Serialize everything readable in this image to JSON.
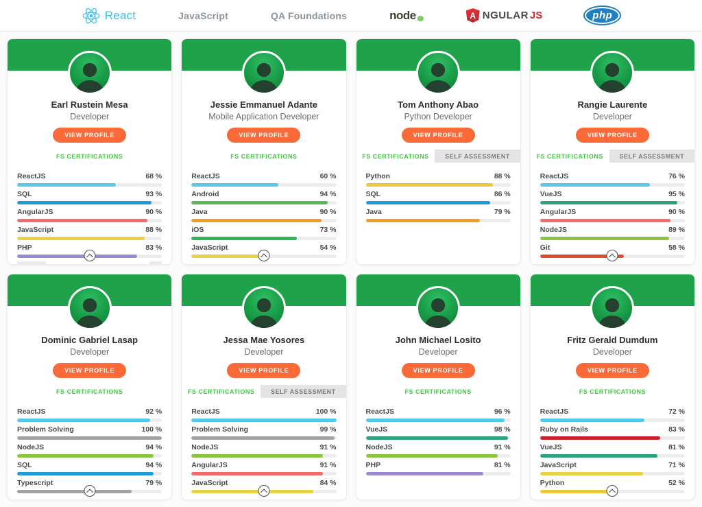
{
  "nav": {
    "react_label": "React",
    "javascript_label": "JavaScript",
    "qa_label": "QA Foundations",
    "node_label": "node",
    "angular_initial": "A",
    "angular_rest": "NGULAR",
    "angular_suffix": "JS",
    "php_label": "php"
  },
  "colors": {
    "header_green": "#1fa24a",
    "button_orange": "#fa6a38",
    "cert_green": "#3ecb3e",
    "react_accent": "#3ac0ee",
    "bar_track": "#ececec"
  },
  "cards": [
    {
      "name": "Earl Rustein Mesa",
      "role": "Developer",
      "button_label": "VIEW PROFILE",
      "cert_tab": "FS CERTIFICATIONS",
      "self_tab": null,
      "faded_extra": true,
      "expand_button": true,
      "skills": [
        {
          "label": "ReactJS",
          "value": 68,
          "color": "#55c8ed"
        },
        {
          "label": "SQL",
          "value": 93,
          "color": "#1f9ad7"
        },
        {
          "label": "AngularJS",
          "value": 90,
          "color": "#f26a6a"
        },
        {
          "label": "JavaScript",
          "value": 88,
          "color": "#e8d348"
        },
        {
          "label": "PHP",
          "value": 83,
          "color": "#9c8ad0"
        }
      ]
    },
    {
      "name": "Jessie Emmanuel Adante",
      "role": "Mobile Application Developer",
      "button_label": "VIEW PROFILE",
      "cert_tab": "FS CERTIFICATIONS",
      "self_tab": null,
      "faded_extra": false,
      "expand_button": true,
      "skills": [
        {
          "label": "ReactJS",
          "value": 60,
          "color": "#55c8ed"
        },
        {
          "label": "Android",
          "value": 94,
          "color": "#5cb85c"
        },
        {
          "label": "Java",
          "value": 90,
          "color": "#f59a23"
        },
        {
          "label": "iOS",
          "value": 73,
          "color": "#2fb457"
        },
        {
          "label": "JavaScript",
          "value": 54,
          "color": "#e8d348"
        }
      ]
    },
    {
      "name": "Tom Anthony Abao",
      "role": "Python Developer",
      "button_label": "VIEW PROFILE",
      "cert_tab": "FS CERTIFICATIONS",
      "self_tab": "SELF ASSESSMENT",
      "faded_extra": false,
      "expand_button": false,
      "skills": [
        {
          "label": "Python",
          "value": 88,
          "color": "#f0c63c"
        },
        {
          "label": "SQL",
          "value": 86,
          "color": "#1f9ad7"
        },
        {
          "label": "Java",
          "value": 79,
          "color": "#f59a23"
        }
      ]
    },
    {
      "name": "Rangie Laurente",
      "role": "Developer",
      "button_label": "VIEW PROFILE",
      "cert_tab": "FS CERTIFICATIONS",
      "self_tab": "SELF ASSESSMENT",
      "faded_extra": false,
      "expand_button": true,
      "skills": [
        {
          "label": "ReactJS",
          "value": 76,
          "color": "#55c8ed"
        },
        {
          "label": "VueJS",
          "value": 95,
          "color": "#2ba377"
        },
        {
          "label": "AngularJS",
          "value": 90,
          "color": "#f26a6a"
        },
        {
          "label": "NodeJS",
          "value": 89,
          "color": "#8bc540"
        },
        {
          "label": "Git",
          "value": 58,
          "color": "#e14b2e"
        }
      ]
    },
    {
      "name": "Dominic Gabriel Lasap",
      "role": "Developer",
      "button_label": "VIEW PROFILE",
      "cert_tab": "FS CERTIFICATIONS",
      "self_tab": null,
      "faded_extra": false,
      "expand_button": true,
      "skills": [
        {
          "label": "ReactJS",
          "value": 92,
          "color": "#55c8ed"
        },
        {
          "label": "Problem Solving",
          "value": 100,
          "color": "#a2a2a2"
        },
        {
          "label": "NodeJS",
          "value": 94,
          "color": "#8bc540"
        },
        {
          "label": "SQL",
          "value": 94,
          "color": "#1f9ad7"
        },
        {
          "label": "Typescript",
          "value": 79,
          "color": "#a2a2a2"
        }
      ]
    },
    {
      "name": "Jessa Mae Yosores",
      "role": "Developer",
      "button_label": "VIEW PROFILE",
      "cert_tab": "FS CERTIFICATIONS",
      "self_tab": "SELF ASSESSMENT",
      "faded_extra": false,
      "expand_button": true,
      "skills": [
        {
          "label": "ReactJS",
          "value": 100,
          "color": "#55c8ed"
        },
        {
          "label": "Problem Solving",
          "value": 99,
          "color": "#a2a2a2"
        },
        {
          "label": "NodeJS",
          "value": 91,
          "color": "#8bc540"
        },
        {
          "label": "AngularJS",
          "value": 91,
          "color": "#f26a6a"
        },
        {
          "label": "JavaScript",
          "value": 84,
          "color": "#e8d348"
        }
      ]
    },
    {
      "name": "John Michael Losito",
      "role": "Developer",
      "button_label": "VIEW PROFILE",
      "cert_tab": "FS CERTIFICATIONS",
      "self_tab": null,
      "faded_extra": false,
      "expand_button": false,
      "skills": [
        {
          "label": "ReactJS",
          "value": 96,
          "color": "#55c8ed"
        },
        {
          "label": "VueJS",
          "value": 98,
          "color": "#2ba377"
        },
        {
          "label": "NodeJS",
          "value": 91,
          "color": "#8bc540"
        },
        {
          "label": "PHP",
          "value": 81,
          "color": "#9c8ad0"
        }
      ]
    },
    {
      "name": "Fritz Gerald Dumdum",
      "role": "Developer",
      "button_label": "VIEW PROFILE",
      "cert_tab": "FS CERTIFICATIONS",
      "self_tab": null,
      "faded_extra": false,
      "expand_button": true,
      "skills": [
        {
          "label": "ReactJS",
          "value": 72,
          "color": "#55c8ed"
        },
        {
          "label": "Ruby on Rails",
          "value": 83,
          "color": "#cc2127"
        },
        {
          "label": "VueJS",
          "value": 81,
          "color": "#2ba377"
        },
        {
          "label": "JavaScript",
          "value": 71,
          "color": "#e8d348"
        },
        {
          "label": "Python",
          "value": 52,
          "color": "#f0c63c"
        }
      ]
    }
  ]
}
